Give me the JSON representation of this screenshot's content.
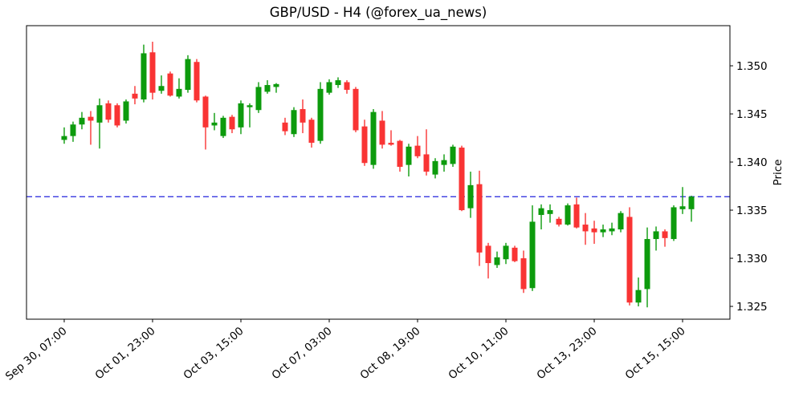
{
  "figure": {
    "background": "#ffffff"
  },
  "chart_data": {
    "type": "candlestick",
    "title": "GBP/USD - H4 (@forex_ua_news)",
    "xlabel": "",
    "ylabel": "Price",
    "grid": false,
    "legend": false,
    "y_axis_side": "right",
    "y_ticks": [
      "1.325",
      "1.330",
      "1.335",
      "1.340",
      "1.345",
      "1.350"
    ],
    "ylim": [
      1.32367,
      1.35417
    ],
    "xlim": [
      -4.27,
      75.36
    ],
    "x_ticks": [
      {
        "index": 0,
        "label": "Sep 30, 07:00"
      },
      {
        "index": 10,
        "label": "Oct 01, 23:00"
      },
      {
        "index": 20,
        "label": "Oct 03, 15:00"
      },
      {
        "index": 30,
        "label": "Oct 07, 03:00"
      },
      {
        "index": 40,
        "label": "Oct 08, 19:00"
      },
      {
        "index": 50,
        "label": "Oct 10, 11:00"
      },
      {
        "index": 60,
        "label": "Oct 13, 23:00"
      },
      {
        "index": 70,
        "label": "Oct 15, 15:00"
      }
    ],
    "hline": {
      "price": 1.3364,
      "color": "#2222dd",
      "style": "dashed"
    },
    "colors": {
      "up": "#0d9b0d",
      "down": "#f93434",
      "border": "#000000",
      "text": "#000000"
    },
    "candles_ohlc": [
      [
        1.3423,
        1.3436,
        1.3419,
        1.3427
      ],
      [
        1.3427,
        1.3442,
        1.3421,
        1.3439
      ],
      [
        1.3439,
        1.3452,
        1.3434,
        1.3446
      ],
      [
        1.3447,
        1.3453,
        1.3418,
        1.3443
      ],
      [
        1.3441,
        1.3466,
        1.3414,
        1.3459
      ],
      [
        1.3461,
        1.3464,
        1.3441,
        1.3444
      ],
      [
        1.3459,
        1.3461,
        1.3436,
        1.3438
      ],
      [
        1.3443,
        1.3465,
        1.344,
        1.3463
      ],
      [
        1.3471,
        1.3479,
        1.346,
        1.3466
      ],
      [
        1.3465,
        1.3522,
        1.3462,
        1.3513
      ],
      [
        1.3514,
        1.3525,
        1.3465,
        1.3472
      ],
      [
        1.3474,
        1.349,
        1.3471,
        1.3479
      ],
      [
        1.3492,
        1.3494,
        1.3468,
        1.3469
      ],
      [
        1.3468,
        1.3487,
        1.3466,
        1.3476
      ],
      [
        1.3475,
        1.3511,
        1.3472,
        1.3507
      ],
      [
        1.3504,
        1.3507,
        1.3462,
        1.3464
      ],
      [
        1.3468,
        1.3469,
        1.3413,
        1.3436
      ],
      [
        1.3438,
        1.3451,
        1.3433,
        1.3441
      ],
      [
        1.3427,
        1.3448,
        1.3425,
        1.3446
      ],
      [
        1.3447,
        1.3449,
        1.343,
        1.3434
      ],
      [
        1.3436,
        1.3464,
        1.3429,
        1.3461
      ],
      [
        1.3457,
        1.3461,
        1.3436,
        1.3459
      ],
      [
        1.3454,
        1.3483,
        1.3451,
        1.3478
      ],
      [
        1.3473,
        1.3485,
        1.3471,
        1.348
      ],
      [
        1.3478,
        1.3482,
        1.3472,
        1.3481
      ],
      [
        1.3441,
        1.3446,
        1.3428,
        1.3432
      ],
      [
        1.3429,
        1.3457,
        1.3426,
        1.3454
      ],
      [
        1.3455,
        1.3465,
        1.343,
        1.3441
      ],
      [
        1.3444,
        1.3446,
        1.3415,
        1.342
      ],
      [
        1.3422,
        1.3483,
        1.3419,
        1.3476
      ],
      [
        1.3472,
        1.3486,
        1.347,
        1.3483
      ],
      [
        1.348,
        1.3488,
        1.3477,
        1.3485
      ],
      [
        1.3483,
        1.3485,
        1.3471,
        1.3475
      ],
      [
        1.3476,
        1.3478,
        1.3431,
        1.3433
      ],
      [
        1.3437,
        1.3444,
        1.3396,
        1.3399
      ],
      [
        1.3397,
        1.3455,
        1.3393,
        1.3452
      ],
      [
        1.3443,
        1.3453,
        1.3414,
        1.3418
      ],
      [
        1.342,
        1.3433,
        1.3417,
        1.3418
      ],
      [
        1.3422,
        1.3423,
        1.339,
        1.3395
      ],
      [
        1.3397,
        1.3419,
        1.3385,
        1.3416
      ],
      [
        1.3417,
        1.3427,
        1.3404,
        1.3406
      ],
      [
        1.3408,
        1.3434,
        1.3386,
        1.339
      ],
      [
        1.3387,
        1.3404,
        1.3383,
        1.3401
      ],
      [
        1.3397,
        1.3408,
        1.339,
        1.3402
      ],
      [
        1.3398,
        1.3418,
        1.3395,
        1.3416
      ],
      [
        1.3415,
        1.3417,
        1.3349,
        1.335
      ],
      [
        1.3352,
        1.339,
        1.3342,
        1.3376
      ],
      [
        1.3377,
        1.3391,
        1.3292,
        1.3306
      ],
      [
        1.3313,
        1.3316,
        1.3279,
        1.3295
      ],
      [
        1.3293,
        1.3307,
        1.329,
        1.3301
      ],
      [
        1.3299,
        1.3316,
        1.3294,
        1.3313
      ],
      [
        1.3311,
        1.3313,
        1.3296,
        1.3297
      ],
      [
        1.33,
        1.3308,
        1.3264,
        1.3268
      ],
      [
        1.3269,
        1.3355,
        1.3266,
        1.3338
      ],
      [
        1.3345,
        1.3356,
        1.333,
        1.3352
      ],
      [
        1.3346,
        1.3356,
        1.3337,
        1.335
      ],
      [
        1.3341,
        1.3343,
        1.3333,
        1.3335
      ],
      [
        1.3335,
        1.3357,
        1.3334,
        1.3355
      ],
      [
        1.3356,
        1.3363,
        1.3331,
        1.3332
      ],
      [
        1.3335,
        1.3347,
        1.3314,
        1.3328
      ],
      [
        1.3331,
        1.3339,
        1.3315,
        1.3327
      ],
      [
        1.3327,
        1.3335,
        1.3322,
        1.333
      ],
      [
        1.3328,
        1.3337,
        1.3324,
        1.3331
      ],
      [
        1.333,
        1.3349,
        1.3327,
        1.3347
      ],
      [
        1.3343,
        1.3353,
        1.3251,
        1.3254
      ],
      [
        1.3254,
        1.328,
        1.325,
        1.3267
      ],
      [
        1.3268,
        1.3332,
        1.3249,
        1.332
      ],
      [
        1.332,
        1.3333,
        1.3308,
        1.3328
      ],
      [
        1.3328,
        1.333,
        1.3312,
        1.3321
      ],
      [
        1.332,
        1.3355,
        1.3318,
        1.3353
      ],
      [
        1.3351,
        1.3374,
        1.3346,
        1.3354
      ],
      [
        1.3351,
        1.3365,
        1.3338,
        1.3364
      ]
    ]
  }
}
